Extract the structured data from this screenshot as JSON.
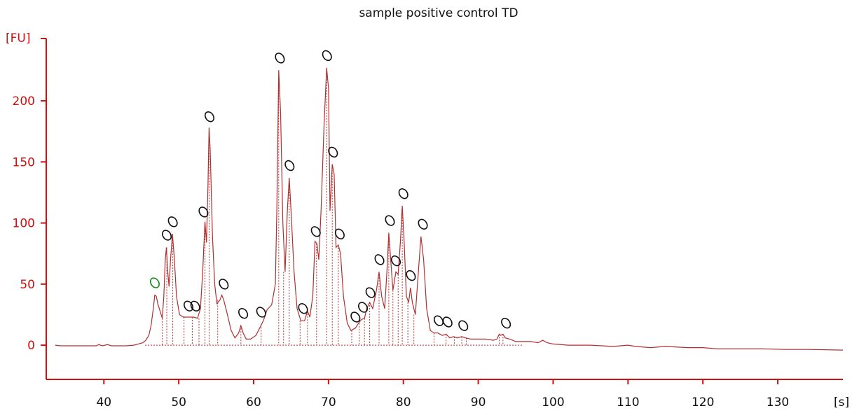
{
  "chart_data": {
    "type": "line",
    "title": "sample positive control TD",
    "xlabel": "[s]",
    "ylabel": "[FU]",
    "xlim": [
      32.3,
      138.7
    ],
    "ylim": [
      -28,
      251
    ],
    "xticks": [
      40,
      50,
      60,
      70,
      80,
      90,
      100,
      110,
      120,
      130
    ],
    "yticks": [
      0,
      50,
      100,
      150,
      200
    ],
    "grid": false,
    "colors": {
      "trace": "#b03030",
      "axis_y": "#cc1111",
      "axis_x": "#cc1111",
      "marker": "#111111",
      "marker_first": "#1a8a1a"
    },
    "series": [
      {
        "points": [
          [
            33.5,
            0
          ],
          [
            34.2,
            -0.5
          ],
          [
            39,
            -0.5
          ],
          [
            39.3,
            0.5
          ],
          [
            39.8,
            -0.5
          ],
          [
            40.5,
            0.5
          ],
          [
            41,
            -0.5
          ],
          [
            43,
            -0.5
          ],
          [
            44,
            0
          ],
          [
            44.6,
            1
          ],
          [
            45.2,
            2
          ],
          [
            45.6,
            4
          ],
          [
            46,
            8
          ],
          [
            46.3,
            16
          ],
          [
            46.6,
            30
          ],
          [
            46.8,
            41
          ],
          [
            47.0,
            40
          ],
          [
            47.2,
            34
          ],
          [
            47.5,
            28
          ],
          [
            47.8,
            22
          ],
          [
            48.0,
            40
          ],
          [
            48.2,
            70
          ],
          [
            48.35,
            80
          ],
          [
            48.5,
            62
          ],
          [
            48.7,
            48
          ],
          [
            48.9,
            70
          ],
          [
            49.15,
            91
          ],
          [
            49.4,
            72
          ],
          [
            49.7,
            40
          ],
          [
            50.1,
            25
          ],
          [
            50.6,
            23
          ],
          [
            51.0,
            23
          ],
          [
            51.5,
            23
          ],
          [
            52.0,
            23
          ],
          [
            52.5,
            22
          ],
          [
            52.9,
            30
          ],
          [
            53.2,
            60
          ],
          [
            53.5,
            101
          ],
          [
            53.7,
            84
          ],
          [
            53.9,
            130
          ],
          [
            54.05,
            178
          ],
          [
            54.2,
            160
          ],
          [
            54.5,
            90
          ],
          [
            54.8,
            50
          ],
          [
            55.1,
            34
          ],
          [
            55.5,
            37
          ],
          [
            55.75,
            41
          ],
          [
            56.0,
            37
          ],
          [
            56.5,
            25
          ],
          [
            57.0,
            12
          ],
          [
            57.5,
            6
          ],
          [
            58.0,
            10
          ],
          [
            58.3,
            16
          ],
          [
            58.6,
            10
          ],
          [
            59.0,
            5
          ],
          [
            59.6,
            5
          ],
          [
            60.3,
            8
          ],
          [
            60.8,
            14
          ],
          [
            61.3,
            20
          ],
          [
            61.8,
            29
          ],
          [
            62.4,
            33
          ],
          [
            62.9,
            50
          ],
          [
            63.1,
            110
          ],
          [
            63.35,
            225
          ],
          [
            63.6,
            190
          ],
          [
            63.9,
            100
          ],
          [
            64.2,
            60
          ],
          [
            64.5,
            110
          ],
          [
            64.75,
            137
          ],
          [
            65.0,
            110
          ],
          [
            65.4,
            60
          ],
          [
            65.8,
            30
          ],
          [
            66.3,
            20
          ],
          [
            66.8,
            20
          ],
          [
            67.2,
            28
          ],
          [
            67.5,
            23
          ],
          [
            67.9,
            40
          ],
          [
            68.2,
            85
          ],
          [
            68.45,
            83
          ],
          [
            68.7,
            70
          ],
          [
            69.0,
            110
          ],
          [
            69.4,
            180
          ],
          [
            69.75,
            227
          ],
          [
            70.0,
            210
          ],
          [
            70.2,
            110
          ],
          [
            70.5,
            148
          ],
          [
            70.75,
            140
          ],
          [
            71.0,
            80
          ],
          [
            71.3,
            82
          ],
          [
            71.6,
            75
          ],
          [
            72.0,
            40
          ],
          [
            72.5,
            18
          ],
          [
            73.0,
            12
          ],
          [
            73.6,
            14
          ],
          [
            74.0,
            18
          ],
          [
            74.4,
            21
          ],
          [
            74.8,
            22
          ],
          [
            75.1,
            30
          ],
          [
            75.5,
            35
          ],
          [
            75.9,
            30
          ],
          [
            76.4,
            45
          ],
          [
            76.75,
            60
          ],
          [
            77.1,
            40
          ],
          [
            77.5,
            30
          ],
          [
            77.8,
            60
          ],
          [
            78.05,
            92
          ],
          [
            78.3,
            70
          ],
          [
            78.6,
            45
          ],
          [
            79.0,
            60
          ],
          [
            79.3,
            58
          ],
          [
            79.6,
            85
          ],
          [
            79.85,
            114
          ],
          [
            80.1,
            85
          ],
          [
            80.4,
            40
          ],
          [
            80.7,
            35
          ],
          [
            80.95,
            47
          ],
          [
            81.2,
            35
          ],
          [
            81.6,
            25
          ],
          [
            82.0,
            60
          ],
          [
            82.35,
            89
          ],
          [
            82.7,
            70
          ],
          [
            83.1,
            30
          ],
          [
            83.6,
            12
          ],
          [
            84.1,
            10
          ],
          [
            84.6,
            10
          ],
          [
            85.2,
            8
          ],
          [
            85.7,
            9
          ],
          [
            86.2,
            6
          ],
          [
            86.7,
            7
          ],
          [
            87.2,
            6
          ],
          [
            87.8,
            7
          ],
          [
            88.3,
            6
          ],
          [
            89,
            5
          ],
          [
            90,
            5
          ],
          [
            91,
            5
          ],
          [
            92,
            4
          ],
          [
            92.5,
            5
          ],
          [
            92.8,
            9
          ],
          [
            93.0,
            8
          ],
          [
            93.3,
            9
          ],
          [
            93.6,
            6
          ],
          [
            94.2,
            5
          ],
          [
            95,
            3
          ],
          [
            96,
            3
          ],
          [
            97,
            3
          ],
          [
            98,
            2
          ],
          [
            98.6,
            4
          ],
          [
            99.2,
            2
          ],
          [
            100,
            1
          ],
          [
            102,
            0
          ],
          [
            105,
            0
          ],
          [
            108,
            -1
          ],
          [
            110,
            0
          ],
          [
            111,
            -1
          ],
          [
            113,
            -2
          ],
          [
            115,
            -1
          ],
          [
            118,
            -2
          ],
          [
            120,
            -2
          ],
          [
            122,
            -3
          ],
          [
            125,
            -3
          ],
          [
            128,
            -3
          ],
          [
            131,
            -3.5
          ],
          [
            134,
            -3.5
          ],
          [
            138.7,
            -4
          ]
        ]
      }
    ],
    "peaks": [
      {
        "x": 47.8,
        "y": 22
      },
      {
        "x": 48.4,
        "y": 80
      },
      {
        "x": 49.2,
        "y": 91
      },
      {
        "x": 50.7,
        "y": 23
      },
      {
        "x": 51.8,
        "y": 23
      },
      {
        "x": 52.7,
        "y": 22
      },
      {
        "x": 53.5,
        "y": 101
      },
      {
        "x": 54.05,
        "y": 178
      },
      {
        "x": 55.2,
        "y": 37
      },
      {
        "x": 58.3,
        "y": 16
      },
      {
        "x": 61.0,
        "y": 17
      },
      {
        "x": 63.35,
        "y": 225
      },
      {
        "x": 64.0,
        "y": 60
      },
      {
        "x": 64.75,
        "y": 137
      },
      {
        "x": 66.2,
        "y": 20
      },
      {
        "x": 67.2,
        "y": 28
      },
      {
        "x": 68.4,
        "y": 83
      },
      {
        "x": 69.75,
        "y": 227
      },
      {
        "x": 70.5,
        "y": 148
      },
      {
        "x": 71.3,
        "y": 82
      },
      {
        "x": 73.1,
        "y": 12
      },
      {
        "x": 74.1,
        "y": 18
      },
      {
        "x": 74.8,
        "y": 22
      },
      {
        "x": 75.5,
        "y": 35
      },
      {
        "x": 76.75,
        "y": 60
      },
      {
        "x": 78.05,
        "y": 92
      },
      {
        "x": 78.6,
        "y": 45
      },
      {
        "x": 79.3,
        "y": 58
      },
      {
        "x": 79.85,
        "y": 114
      },
      {
        "x": 80.6,
        "y": 35
      },
      {
        "x": 81.4,
        "y": 25
      },
      {
        "x": 84.1,
        "y": 10
      },
      {
        "x": 85.7,
        "y": 9
      },
      {
        "x": 86.8,
        "y": 7
      },
      {
        "x": 87.8,
        "y": 7
      },
      {
        "x": 88.4,
        "y": 6
      },
      {
        "x": 92.8,
        "y": 9
      },
      {
        "x": 93.3,
        "y": 9
      }
    ],
    "markers": [
      {
        "x": 46.8,
        "y": 51,
        "first": true
      },
      {
        "x": 48.4,
        "y": 90
      },
      {
        "x": 49.2,
        "y": 101
      },
      {
        "x": 51.3,
        "y": 32
      },
      {
        "x": 52.2,
        "y": 32
      },
      {
        "x": 53.3,
        "y": 109
      },
      {
        "x": 54.1,
        "y": 187
      },
      {
        "x": 56.0,
        "y": 50
      },
      {
        "x": 58.6,
        "y": 26
      },
      {
        "x": 61.0,
        "y": 27
      },
      {
        "x": 63.5,
        "y": 235
      },
      {
        "x": 64.8,
        "y": 147
      },
      {
        "x": 66.6,
        "y": 30
      },
      {
        "x": 68.3,
        "y": 93
      },
      {
        "x": 69.8,
        "y": 237
      },
      {
        "x": 70.6,
        "y": 158
      },
      {
        "x": 71.5,
        "y": 91
      },
      {
        "x": 73.6,
        "y": 23
      },
      {
        "x": 74.6,
        "y": 31
      },
      {
        "x": 75.6,
        "y": 43
      },
      {
        "x": 76.8,
        "y": 70
      },
      {
        "x": 78.2,
        "y": 102
      },
      {
        "x": 79.0,
        "y": 69
      },
      {
        "x": 80.0,
        "y": 124
      },
      {
        "x": 81.0,
        "y": 57
      },
      {
        "x": 82.6,
        "y": 99
      },
      {
        "x": 84.7,
        "y": 20
      },
      {
        "x": 85.9,
        "y": 19
      },
      {
        "x": 88.0,
        "y": 16
      },
      {
        "x": 93.7,
        "y": 18
      }
    ]
  }
}
